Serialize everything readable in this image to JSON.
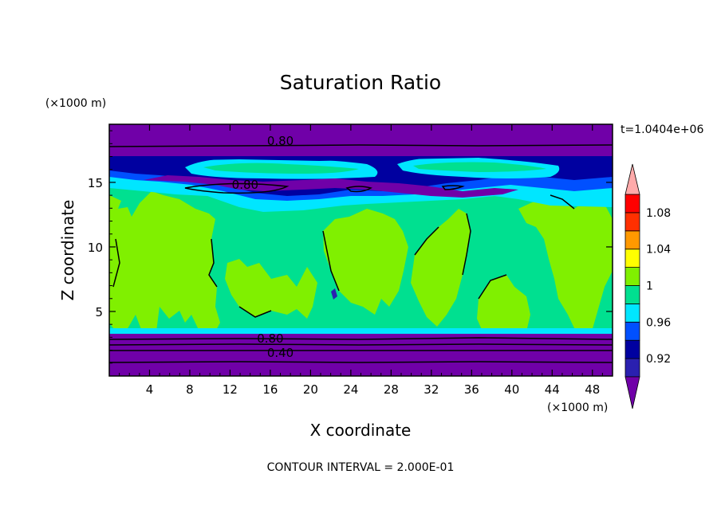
{
  "chart_data": {
    "type": "filled-contour",
    "title": "Saturation Ratio",
    "xlabel": "X coordinate",
    "ylabel": "Z coordinate",
    "x_unit": "(×1000 m)",
    "y_unit": "(×1000 m)",
    "xlim": [
      0,
      50
    ],
    "ylim": [
      0,
      19.5
    ],
    "x_ticks": [
      4,
      8,
      12,
      16,
      20,
      24,
      28,
      32,
      36,
      40,
      44,
      48
    ],
    "y_ticks": [
      5,
      10,
      15
    ],
    "time_label": "t=1.0404e+06",
    "contour_interval_text": "CONTOUR INTERVAL = 2.000E-01",
    "contour_labels": [
      {
        "text": "0.80",
        "x": 17,
        "z": 18.2
      },
      {
        "text": "0.80",
        "x": 13.5,
        "z": 14.8
      },
      {
        "text": "0.80",
        "x": 16,
        "z": 2.9
      },
      {
        "text": "0.40",
        "x": 17,
        "z": 1.8
      }
    ],
    "colorbar": {
      "levels": [
        0.9,
        0.92,
        0.94,
        0.96,
        0.98,
        1.0,
        1.02,
        1.04,
        1.06,
        1.08,
        1.1
      ],
      "tick_labels": [
        "0.92",
        "0.96",
        "1",
        "1.04",
        "1.08"
      ],
      "colors": [
        "#7000a8",
        "#2a20b0",
        "#0000a0",
        "#0050ff",
        "#00e6ff",
        "#00e090",
        "#80f000",
        "#ffff00",
        "#ff9900",
        "#ff3000",
        "#ff0000",
        "#ffaaaa"
      ],
      "under_color": "#7000a8",
      "over_color": "#ffaaaa"
    },
    "regions": [
      {
        "name": "upper-dry-layer",
        "value": "<0.9",
        "z_range": [
          17.3,
          19.5
        ]
      },
      {
        "name": "upper-moist-bands",
        "value": "0.9-1.02",
        "z_range": [
          14.5,
          17.3
        ]
      },
      {
        "name": "mid-saturated-layer",
        "value": "0.98-1.02",
        "z_range": [
          3.3,
          15
        ]
      },
      {
        "name": "lower-dry-layer",
        "value": "<0.9",
        "z_range": [
          0,
          3.3
        ]
      }
    ]
  }
}
